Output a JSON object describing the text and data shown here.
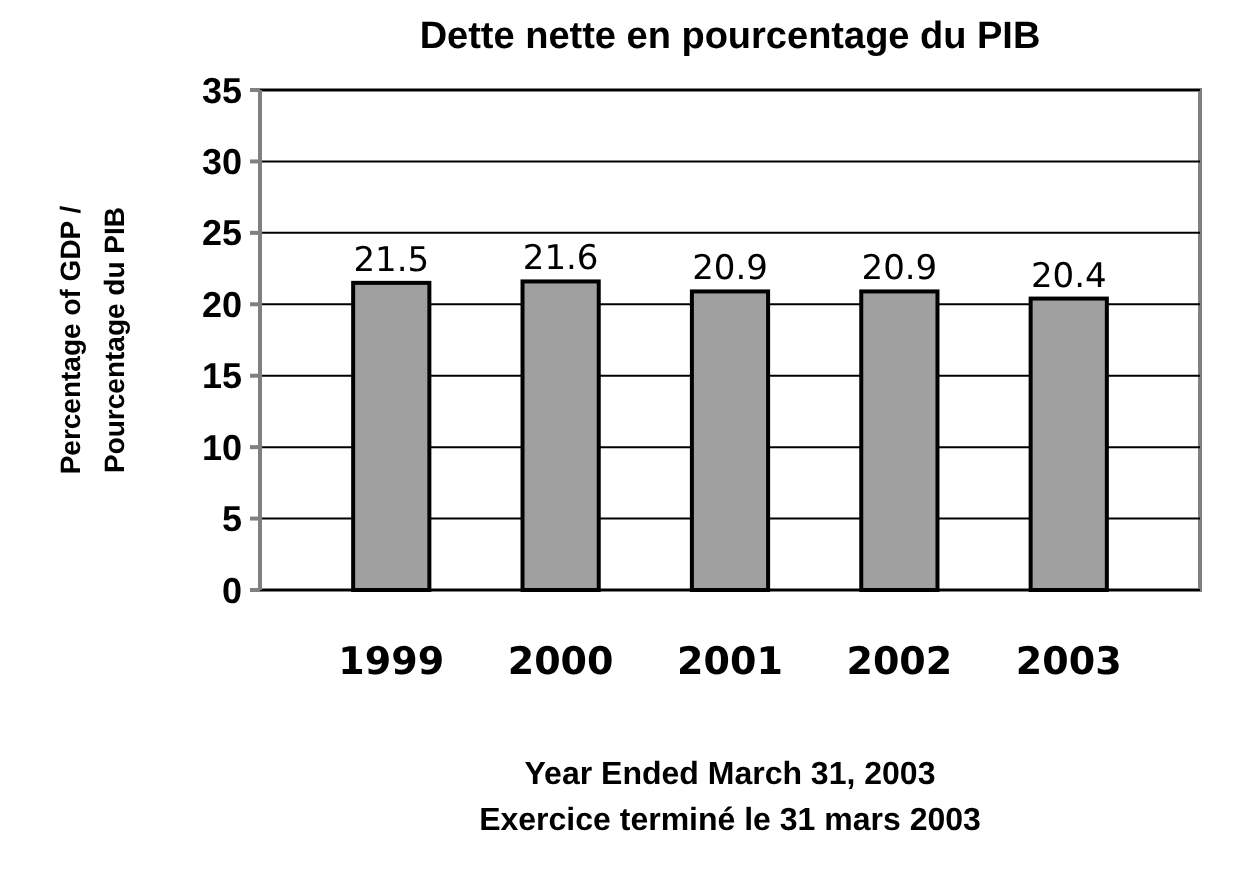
{
  "chart_data": {
    "type": "bar",
    "title": "Dette nette en pourcentage du PIB",
    "xlabel": "Year Ended March 31, 2003\nExercice terminé le 31 mars 2003",
    "ylabel": "Percentage of GDP /\nPourcentage du PIB",
    "categories": [
      "1999",
      "2000",
      "2001",
      "2002",
      "2003"
    ],
    "values": [
      21.5,
      21.6,
      20.9,
      20.9,
      20.4
    ],
    "color": "#a0a0a0",
    "data_labels": true,
    "ylim": [
      0,
      35
    ],
    "yticks": [
      0,
      5,
      10,
      15,
      20,
      25,
      30,
      35
    ],
    "grid": "y"
  }
}
